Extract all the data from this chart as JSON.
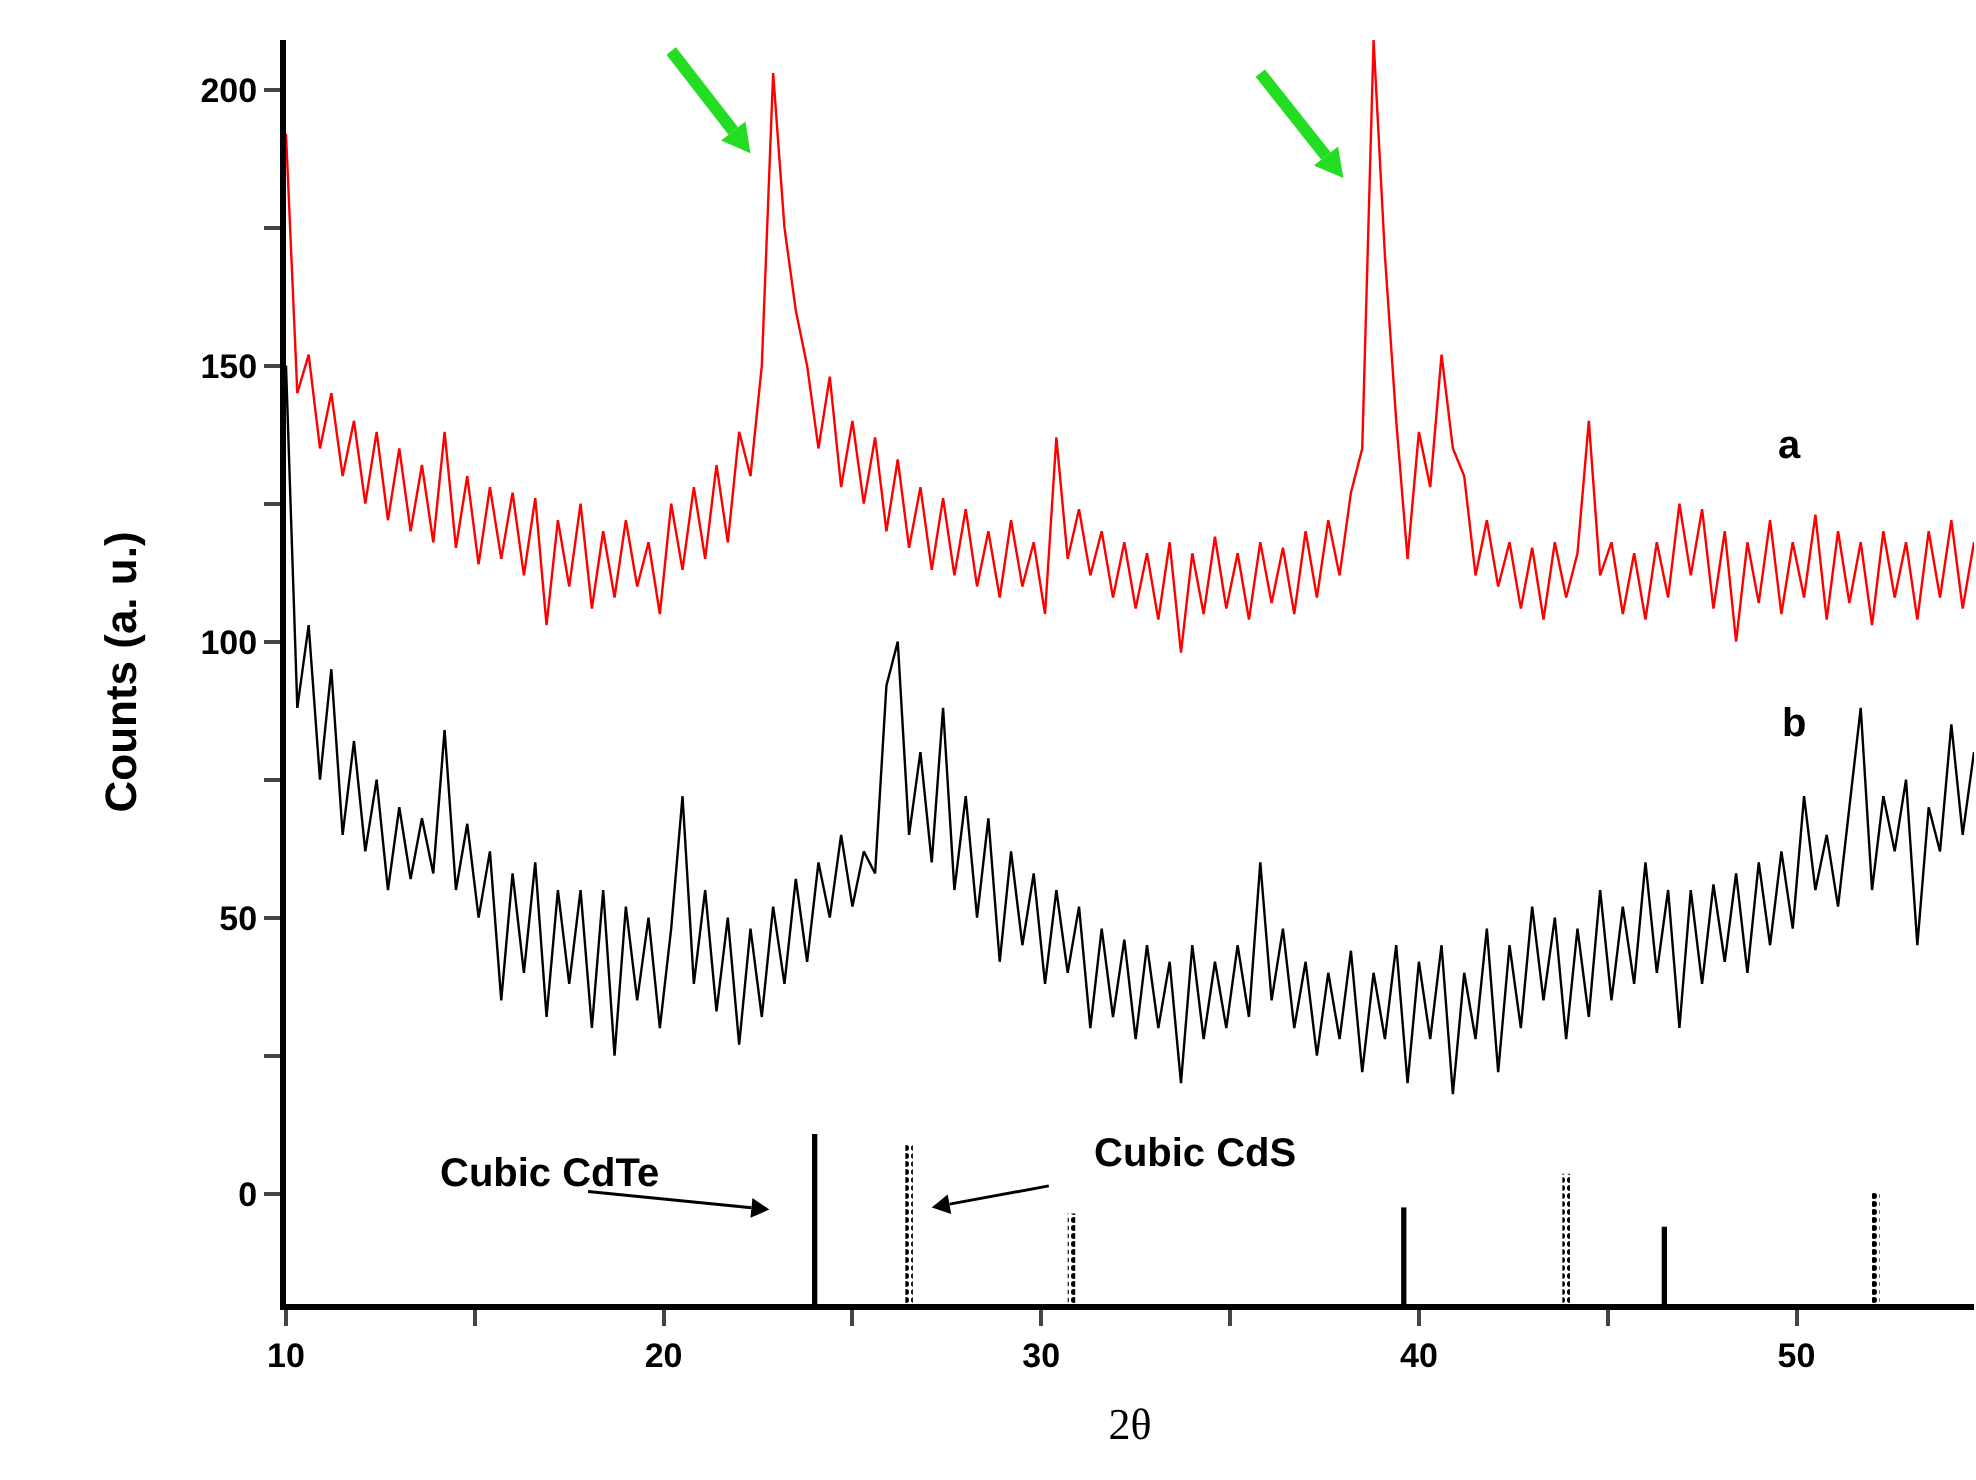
{
  "chart_data": {
    "type": "line",
    "xlabel": "2θ",
    "ylabel": "Counts (a. u.)",
    "x": [
      10.0,
      10.3,
      10.6,
      10.9,
      11.2,
      11.5,
      11.8,
      12.1,
      12.4,
      12.7,
      13.0,
      13.3,
      13.6,
      13.9,
      14.2,
      14.5,
      14.8,
      15.1,
      15.4,
      15.7,
      16.0,
      16.3,
      16.6,
      16.9,
      17.2,
      17.5,
      17.8,
      18.1,
      18.4,
      18.7,
      19.0,
      19.3,
      19.6,
      19.9,
      20.2,
      20.5,
      20.8,
      21.1,
      21.4,
      21.7,
      22.0,
      22.3,
      22.6,
      22.9,
      23.2,
      23.5,
      23.8,
      24.1,
      24.4,
      24.7,
      25.0,
      25.3,
      25.6,
      25.9,
      26.2,
      26.5,
      26.8,
      27.1,
      27.4,
      27.7,
      28.0,
      28.3,
      28.6,
      28.9,
      29.2,
      29.5,
      29.8,
      30.1,
      30.4,
      30.7,
      31.0,
      31.3,
      31.6,
      31.9,
      32.2,
      32.5,
      32.8,
      33.1,
      33.4,
      33.7,
      34.0,
      34.3,
      34.6,
      34.9,
      35.2,
      35.5,
      35.8,
      36.1,
      36.4,
      36.7,
      37.0,
      37.3,
      37.6,
      37.9,
      38.2,
      38.5,
      38.8,
      39.1,
      39.4,
      39.7,
      40.0,
      40.3,
      40.6,
      40.9,
      41.2,
      41.5,
      41.8,
      42.1,
      42.4,
      42.7,
      43.0,
      43.3,
      43.6,
      43.9,
      44.2,
      44.5,
      44.8,
      45.1,
      45.4,
      45.7,
      46.0,
      46.3,
      46.6,
      46.9,
      47.2,
      47.5,
      47.8,
      48.1,
      48.4,
      48.7,
      49.0,
      49.3,
      49.6,
      49.9,
      50.2,
      50.5,
      50.8,
      51.1,
      51.4,
      51.7,
      52.0,
      52.3,
      52.6,
      52.9,
      53.2,
      53.5,
      53.8,
      54.1,
      54.4,
      54.7
    ],
    "series": [
      {
        "color": "#ff0000",
        "values": [
          192,
          145,
          152,
          135,
          145,
          130,
          140,
          125,
          138,
          122,
          135,
          120,
          132,
          118,
          138,
          117,
          130,
          114,
          128,
          115,
          127,
          112,
          126,
          103,
          122,
          110,
          125,
          106,
          120,
          108,
          122,
          110,
          118,
          105,
          125,
          113,
          128,
          115,
          132,
          118,
          138,
          130,
          150,
          203,
          175,
          160,
          150,
          135,
          148,
          128,
          140,
          125,
          137,
          120,
          133,
          117,
          128,
          113,
          126,
          112,
          124,
          110,
          120,
          108,
          122,
          110,
          118,
          105,
          137,
          115,
          124,
          112,
          120,
          108,
          118,
          106,
          116,
          104,
          118,
          98,
          116,
          105,
          119,
          106,
          116,
          104,
          118,
          107,
          117,
          105,
          120,
          108,
          122,
          112,
          127,
          135,
          209,
          170,
          140,
          115,
          138,
          128,
          152,
          135,
          130,
          112,
          122,
          110,
          118,
          106,
          117,
          104,
          118,
          108,
          116,
          140,
          112,
          118,
          105,
          116,
          104,
          118,
          108,
          125,
          112,
          124,
          106,
          120,
          100,
          118,
          107,
          122,
          105,
          118,
          108,
          123,
          104,
          120,
          107,
          118,
          103,
          120,
          108,
          118,
          104,
          120,
          108,
          122,
          106,
          118
        ]
      },
      {
        "color": "#000000",
        "values": [
          150,
          88,
          103,
          75,
          95,
          65,
          82,
          62,
          75,
          55,
          70,
          57,
          68,
          58,
          84,
          55,
          67,
          50,
          62,
          35,
          58,
          40,
          60,
          32,
          55,
          38,
          55,
          30,
          55,
          25,
          52,
          35,
          50,
          30,
          48,
          72,
          38,
          55,
          33,
          50,
          27,
          48,
          32,
          52,
          38,
          57,
          42,
          60,
          50,
          65,
          52,
          62,
          58,
          92,
          100,
          65,
          80,
          60,
          88,
          55,
          72,
          50,
          68,
          42,
          62,
          45,
          58,
          38,
          55,
          40,
          52,
          30,
          48,
          32,
          46,
          28,
          45,
          30,
          42,
          20,
          45,
          28,
          42,
          30,
          45,
          32,
          60,
          35,
          48,
          30,
          42,
          25,
          40,
          28,
          44,
          22,
          40,
          28,
          45,
          20,
          42,
          28,
          45,
          18,
          40,
          28,
          48,
          22,
          45,
          30,
          52,
          35,
          50,
          28,
          48,
          32,
          55,
          35,
          52,
          38,
          60,
          40,
          55,
          30,
          55,
          38,
          56,
          42,
          58,
          40,
          60,
          45,
          62,
          48,
          72,
          55,
          65,
          52,
          70,
          88,
          55,
          72,
          62,
          75,
          45,
          70,
          62,
          85,
          65,
          80
        ]
      },
      {
        "type": "bar",
        "color": "#000000",
        "line_style": "solid",
        "x": [
          24.0,
          39.6,
          46.5
        ],
        "base": [
          -20,
          -20,
          -20
        ],
        "values": [
          30.8,
          17.5,
          14
        ]
      },
      {
        "type": "bar",
        "color": "#000000",
        "line_style": "dotted",
        "x": [
          26.5,
          30.8,
          43.9,
          52.1
        ],
        "base": [
          -20,
          -20,
          -20,
          -20
        ],
        "values": [
          29,
          16.4,
          23.6,
          20.4
        ]
      }
    ],
    "annotations": [
      "a",
      "b",
      "Cubic CdTe",
      "Cubic CdS"
    ],
    "xlim": [
      10,
      54.7
    ],
    "ylim": [
      -20,
      209
    ],
    "xticks": [
      10,
      {
        "value": 15,
        "label": null
      },
      20,
      {
        "value": 25,
        "label": null
      },
      30,
      {
        "value": 35,
        "label": null
      },
      40,
      {
        "value": 45,
        "label": null
      },
      50
    ],
    "yticks": [
      0,
      {
        "value": 25,
        "label": null
      },
      50,
      {
        "value": 75,
        "label": null
      },
      100,
      {
        "value": 125,
        "label": null
      },
      150,
      {
        "value": 175,
        "label": null
      },
      200
    ],
    "grid": false,
    "marker": "none"
  }
}
